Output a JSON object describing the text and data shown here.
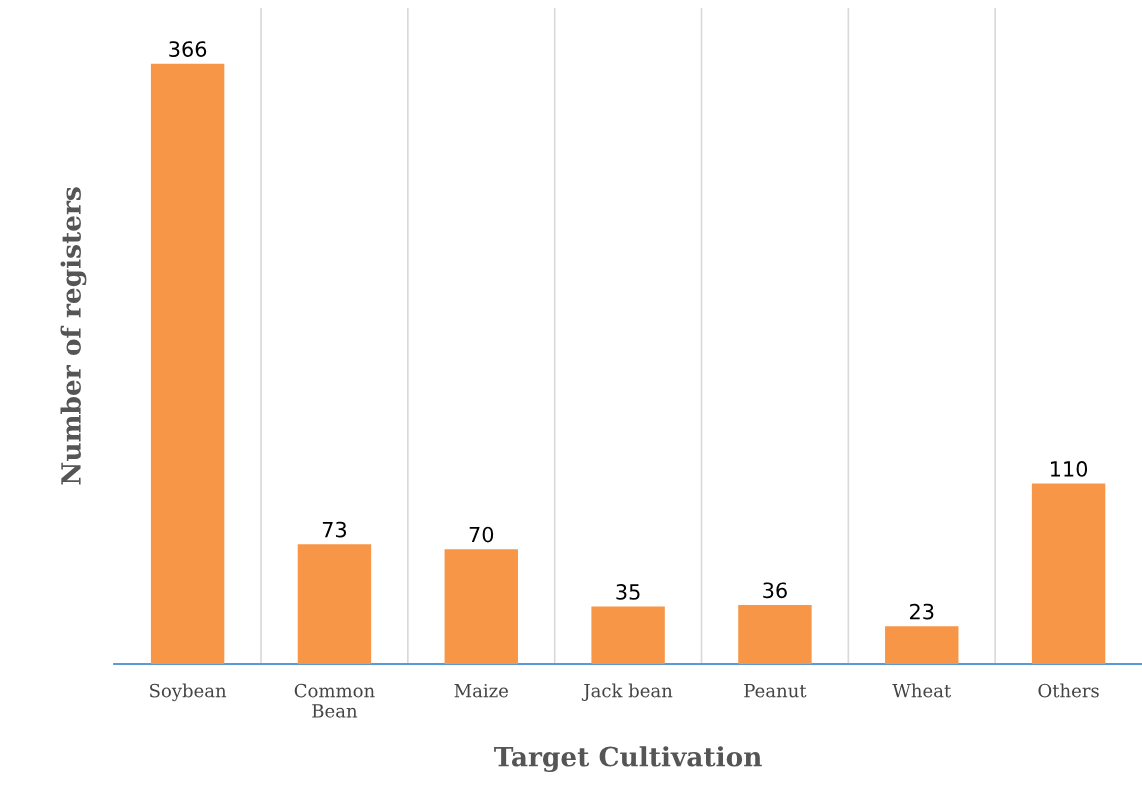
{
  "chart_data": {
    "type": "bar",
    "xlabel": "Target Cultivation",
    "ylabel": "Number of registers",
    "categories": [
      "Soybean",
      "Common\nBean",
      "Maize",
      "Jack bean",
      "Peanut",
      "Wheat",
      "Others"
    ],
    "values": [
      366,
      73,
      70,
      35,
      36,
      23,
      110
    ],
    "color": "#f79646",
    "ylim": [
      0,
      400
    ],
    "data_labels": true,
    "grid": "x",
    "legend": false
  }
}
